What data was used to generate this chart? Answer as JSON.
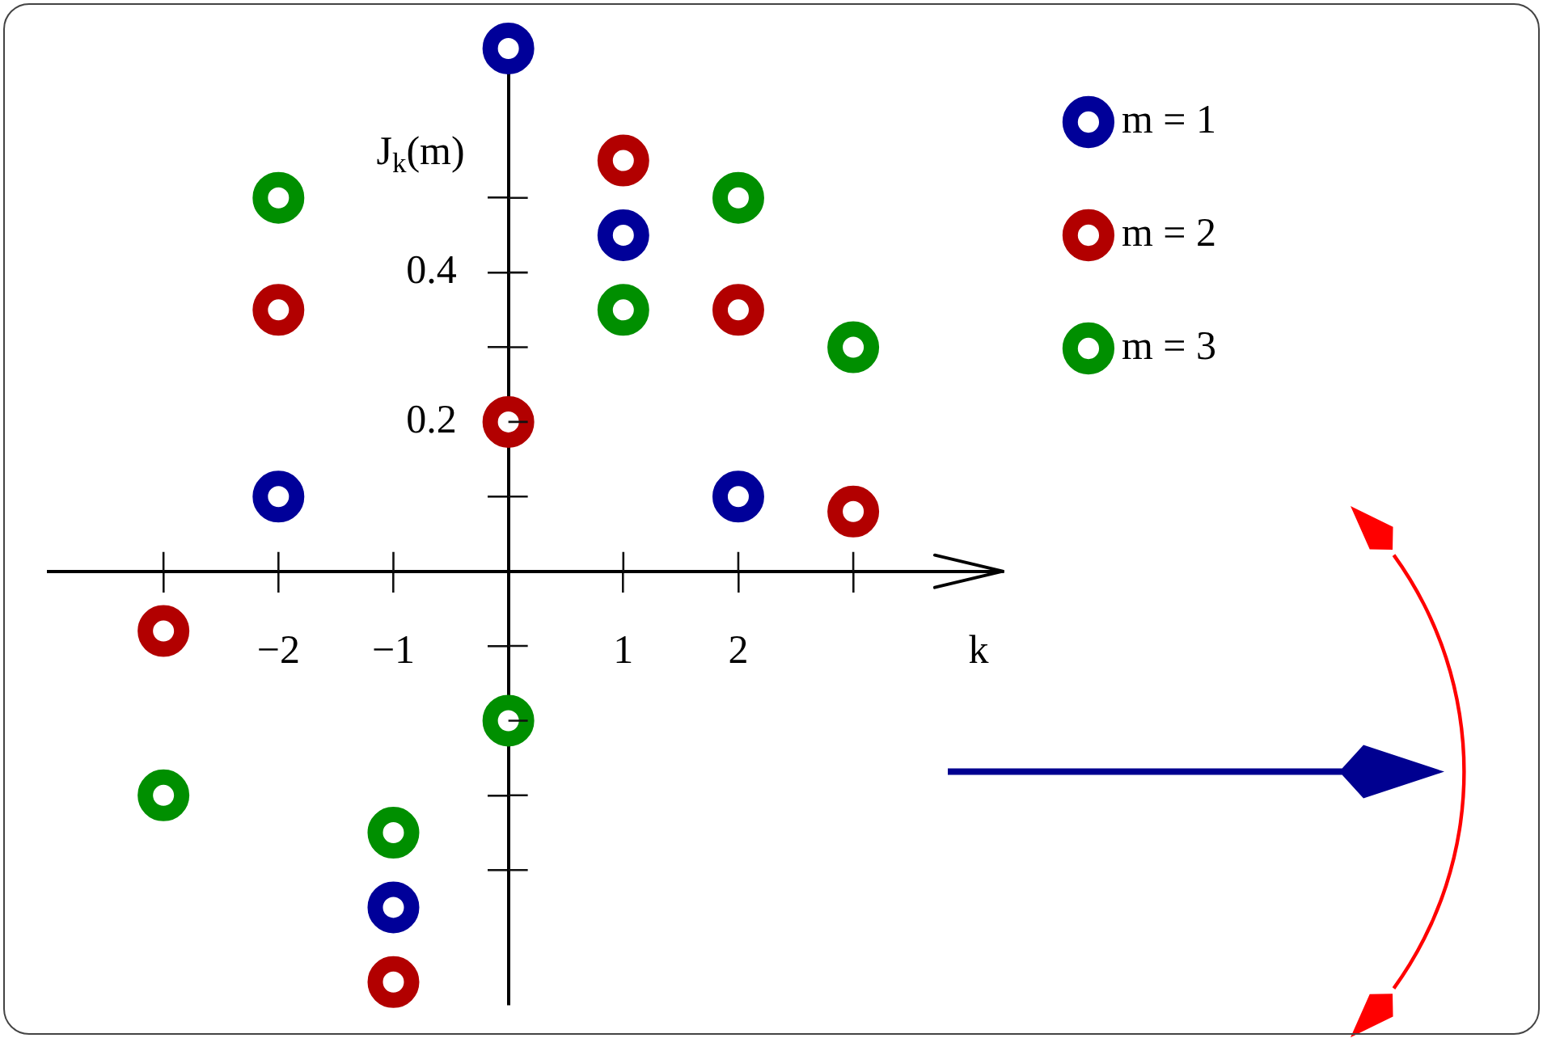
{
  "chart_data": {
    "type": "scatter",
    "xlabel": "k",
    "ylabel": "J$_{k}$(m)",
    "xlim": [
      -4,
      4.3
    ],
    "ylim": [
      -0.58,
      0.72
    ],
    "xticks": [
      {
        "value": -3,
        "label": null
      },
      {
        "value": -2,
        "label": "−2"
      },
      {
        "value": -1,
        "label": "−1"
      },
      1,
      2,
      {
        "value": 3,
        "label": null
      }
    ],
    "yticks": [
      {
        "value": -0.4,
        "label": null
      },
      {
        "value": -0.3,
        "label": null
      },
      {
        "value": -0.2,
        "label": null
      },
      {
        "value": -0.1,
        "label": null
      },
      {
        "value": 0.1,
        "label": null
      },
      0.2,
      {
        "value": 0.3,
        "label": null
      },
      0.4,
      {
        "value": 0.5,
        "label": null
      }
    ],
    "series": [
      {
        "name": "m = 1",
        "color": "#000099",
        "x": [
          -2,
          -1,
          0,
          1,
          2
        ],
        "values": [
          0.1,
          -0.45,
          0.7,
          0.45,
          0.1
        ]
      },
      {
        "name": "m = 2",
        "color": "#b20000",
        "x": [
          -3,
          -2,
          -1,
          0,
          1,
          2,
          3
        ],
        "values": [
          -0.08,
          0.35,
          -0.55,
          0.2,
          0.55,
          0.35,
          0.08
        ]
      },
      {
        "name": "m = 3",
        "color": "#008f00",
        "x": [
          -3,
          -2,
          -1,
          0,
          1,
          2,
          3
        ],
        "values": [
          -0.3,
          0.5,
          -0.35,
          -0.2,
          0.35,
          0.5,
          0.3
        ]
      }
    ],
    "marker": "circle",
    "legend": "top right"
  }
}
